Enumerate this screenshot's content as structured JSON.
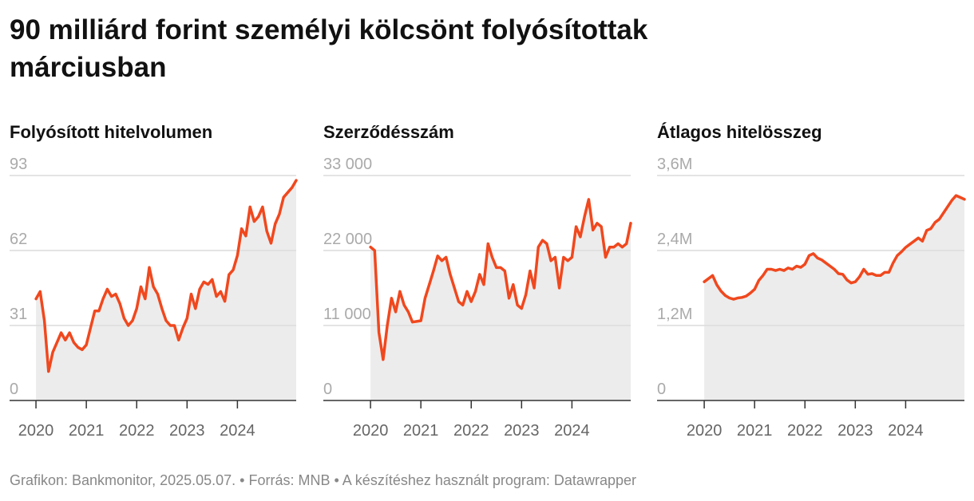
{
  "title": "90 milliárd forint személyi kölcsönt folyósítottak márciusban",
  "footer": "Grafikon: Bankmonitor, 2025.05.07. • Forrás: MNB • A készítéshez használt program: Datawrapper",
  "chart_data": [
    {
      "type": "line",
      "title": "Folyósított hitelvolumen",
      "color": "#f0481e",
      "fill": "#ececec",
      "grid": true,
      "x": [
        2020,
        2020.083,
        2020.167,
        2020.25,
        2020.333,
        2020.417,
        2020.5,
        2020.583,
        2020.667,
        2020.75,
        2020.833,
        2020.917,
        2021,
        2021.083,
        2021.167,
        2021.25,
        2021.333,
        2021.417,
        2021.5,
        2021.583,
        2021.667,
        2021.75,
        2021.833,
        2021.917,
        2022,
        2022.083,
        2022.167,
        2022.25,
        2022.333,
        2022.417,
        2022.5,
        2022.583,
        2022.667,
        2022.75,
        2022.833,
        2022.917,
        2023,
        2023.083,
        2023.167,
        2023.25,
        2023.333,
        2023.417,
        2023.5,
        2023.583,
        2023.667,
        2023.75,
        2023.833,
        2023.917,
        2024,
        2024.083,
        2024.167,
        2024.25,
        2024.333,
        2024.417,
        2024.5,
        2024.583,
        2024.667,
        2024.75,
        2024.833,
        2024.917,
        2025,
        2025.083,
        2025.167
      ],
      "values": [
        42,
        45,
        33,
        12,
        20,
        24,
        28,
        25,
        28,
        24,
        22,
        21,
        23,
        30,
        37,
        37,
        42,
        46,
        43,
        44,
        40,
        34,
        31,
        33,
        38,
        47,
        42,
        55,
        47,
        44,
        38,
        33,
        31,
        31,
        25,
        30,
        34,
        44,
        38,
        46,
        49,
        48,
        50,
        43,
        45,
        41,
        52,
        54,
        60,
        71,
        68,
        80,
        74,
        76,
        80,
        70,
        65,
        73,
        77,
        84,
        86,
        88,
        91
      ],
      "xlim": [
        2019.476,
        2025.167
      ],
      "xticks": [
        2020,
        2021,
        2022,
        2023,
        2024
      ],
      "ylim": [
        0,
        93
      ],
      "yticks": [
        0,
        31,
        62,
        93
      ]
    },
    {
      "type": "line",
      "title": "Szerződésszám",
      "color": "#f0481e",
      "fill": "#ececec",
      "grid": true,
      "x": [
        2020,
        2020.083,
        2020.167,
        2020.25,
        2020.333,
        2020.417,
        2020.5,
        2020.583,
        2020.667,
        2020.75,
        2020.833,
        2020.917,
        2021,
        2021.083,
        2021.167,
        2021.25,
        2021.333,
        2021.417,
        2021.5,
        2021.583,
        2021.667,
        2021.75,
        2021.833,
        2021.917,
        2022,
        2022.083,
        2022.167,
        2022.25,
        2022.333,
        2022.417,
        2022.5,
        2022.583,
        2022.667,
        2022.75,
        2022.833,
        2022.917,
        2023,
        2023.083,
        2023.167,
        2023.25,
        2023.333,
        2023.417,
        2023.5,
        2023.583,
        2023.667,
        2023.75,
        2023.833,
        2023.917,
        2024,
        2024.083,
        2024.167,
        2024.25,
        2024.333,
        2024.417,
        2024.5,
        2024.583,
        2024.667,
        2024.75,
        2024.833,
        2024.917,
        2025,
        2025.083,
        2025.167
      ],
      "values": [
        22500,
        22000,
        10000,
        6000,
        11000,
        15000,
        13000,
        16000,
        14000,
        13000,
        11500,
        11600,
        11700,
        15000,
        17000,
        19000,
        21200,
        20500,
        21000,
        18500,
        16500,
        14500,
        14000,
        16000,
        14500,
        16000,
        18500,
        17000,
        23000,
        21000,
        19500,
        19500,
        19000,
        15000,
        17000,
        14000,
        13500,
        15500,
        19000,
        16500,
        22500,
        23500,
        23000,
        20500,
        21000,
        16500,
        21000,
        20500,
        21000,
        25500,
        24000,
        27000,
        29500,
        25000,
        26000,
        25500,
        21000,
        22500,
        22500,
        23000,
        22500,
        23000,
        26000
      ],
      "xlim": [
        2019.063,
        2025.167
      ],
      "xticks": [
        2020,
        2021,
        2022,
        2023,
        2024
      ],
      "ylim": [
        0,
        33000
      ],
      "yticks": [
        0,
        {
          "value": 11000,
          "label": "11 000"
        },
        {
          "value": 22000,
          "label": "22 000"
        },
        {
          "value": 33000,
          "label": "33 000"
        }
      ]
    },
    {
      "type": "line",
      "title": "Átlagos hitelösszeg",
      "color": "#f0481e",
      "fill": "#ececec",
      "grid": true,
      "x": [
        2020,
        2020.083,
        2020.167,
        2020.25,
        2020.333,
        2020.417,
        2020.5,
        2020.583,
        2020.667,
        2020.75,
        2020.833,
        2020.917,
        2021,
        2021.083,
        2021.167,
        2021.25,
        2021.333,
        2021.417,
        2021.5,
        2021.583,
        2021.667,
        2021.75,
        2021.833,
        2021.917,
        2022,
        2022.083,
        2022.167,
        2022.25,
        2022.333,
        2022.417,
        2022.5,
        2022.583,
        2022.667,
        2022.75,
        2022.833,
        2022.917,
        2023,
        2023.083,
        2023.167,
        2023.25,
        2023.333,
        2023.417,
        2023.5,
        2023.583,
        2023.667,
        2023.75,
        2023.833,
        2023.917,
        2024,
        2024.083,
        2024.167,
        2024.25,
        2024.333,
        2024.417,
        2024.5,
        2024.583,
        2024.667,
        2024.75,
        2024.833,
        2024.917,
        2025,
        2025.083,
        2025.167
      ],
      "values": [
        1900000,
        1950000,
        2000000,
        1850000,
        1750000,
        1680000,
        1640000,
        1620000,
        1640000,
        1650000,
        1670000,
        1720000,
        1780000,
        1920000,
        2000000,
        2100000,
        2100000,
        2080000,
        2100000,
        2080000,
        2120000,
        2100000,
        2150000,
        2130000,
        2180000,
        2320000,
        2350000,
        2280000,
        2250000,
        2200000,
        2150000,
        2100000,
        2030000,
        2020000,
        1930000,
        1880000,
        1900000,
        1980000,
        2100000,
        2020000,
        2030000,
        2000000,
        2000000,
        2050000,
        2050000,
        2200000,
        2320000,
        2380000,
        2450000,
        2500000,
        2550000,
        2600000,
        2550000,
        2720000,
        2750000,
        2850000,
        2900000,
        3000000,
        3100000,
        3200000,
        3280000,
        3250000,
        3220000
      ],
      "xlim": [
        2019.063,
        2025.167
      ],
      "xticks": [
        2020,
        2021,
        2022,
        2023,
        2024
      ],
      "ylim": [
        0,
        3600000
      ],
      "yticks": [
        0,
        {
          "value": 1200000,
          "label": "1,2M"
        },
        {
          "value": 2400000,
          "label": "2,4M"
        },
        {
          "value": 3600000,
          "label": "3,6M"
        }
      ]
    }
  ]
}
